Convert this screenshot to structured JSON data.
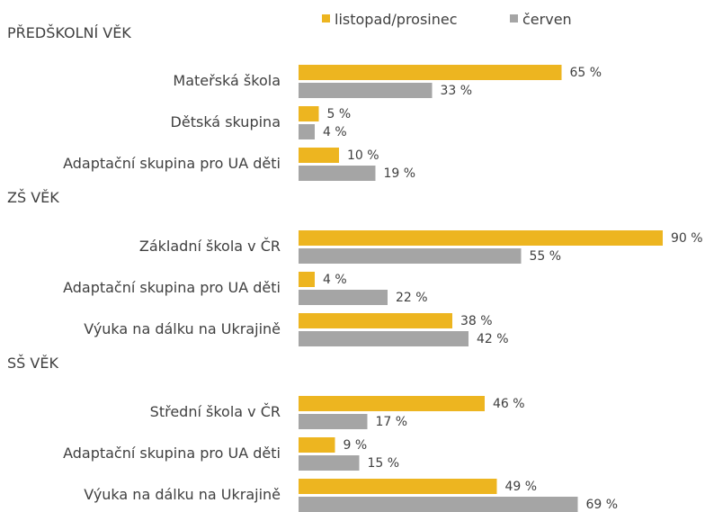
{
  "chart_data": {
    "type": "bar",
    "orientation": "horizontal",
    "legend": {
      "placement": "top-right",
      "items": [
        {
          "label": "listopad/prosinec",
          "color": "#EDB520"
        },
        {
          "label": "červen",
          "color": "#A5A5A5"
        }
      ]
    },
    "series": [
      {
        "name": "listopad/prosinec",
        "color": "#EDB520"
      },
      {
        "name": "červen",
        "color": "#A5A5A5"
      }
    ],
    "value_suffix": " %",
    "xlim": [
      0,
      90
    ],
    "grid": false,
    "groups": [
      {
        "title": "PŘEDŠKOLNÍ VĚK",
        "categories": [
          {
            "label": "Mateřská škola",
            "values": [
              65,
              33
            ]
          },
          {
            "label": "Dětská skupina",
            "values": [
              5,
              4
            ]
          },
          {
            "label": "Adaptační skupina pro UA děti",
            "values": [
              10,
              19
            ]
          }
        ]
      },
      {
        "title": "ZŠ VĚK",
        "categories": [
          {
            "label": "Základní škola v ČR",
            "values": [
              90,
              55
            ]
          },
          {
            "label": "Adaptační skupina pro UA děti",
            "values": [
              4,
              22
            ]
          },
          {
            "label": "Výuka na dálku na Ukrajině",
            "values": [
              38,
              42
            ]
          }
        ]
      },
      {
        "title": "SŠ VĚK",
        "categories": [
          {
            "label": "Střední škola v ČR",
            "values": [
              46,
              17
            ]
          },
          {
            "label": "Adaptační skupina pro UA děti",
            "values": [
              9,
              15
            ]
          },
          {
            "label": "Výuka na dálku na Ukrajině",
            "values": [
              49,
              69
            ]
          }
        ]
      }
    ]
  }
}
